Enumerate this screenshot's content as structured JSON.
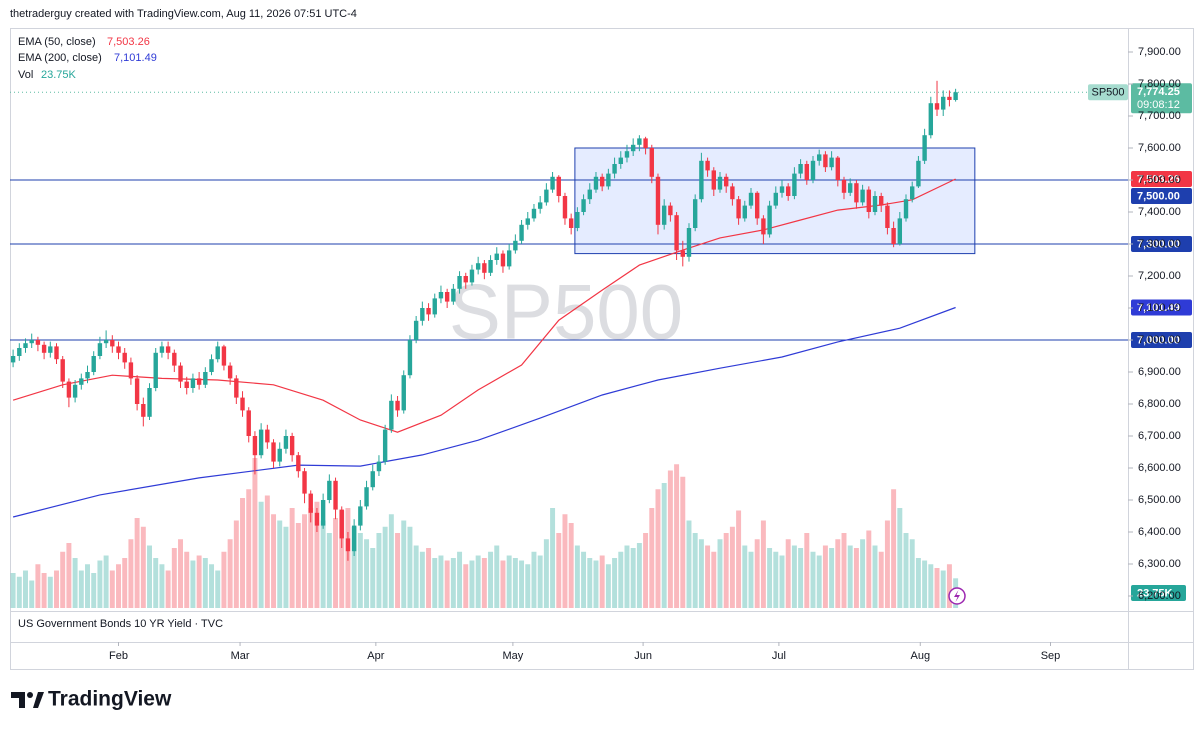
{
  "chart_data": {
    "type": "candlestick",
    "header": "thetraderguy created with TradingView.com, Aug 11, 2026 07:51 UTC-4",
    "watermark": "SP500",
    "xlim": [
      -0.5,
      179.8
    ],
    "xticks": [
      {
        "value": 17,
        "label": "Feb"
      },
      {
        "value": 36.6,
        "label": "Mar"
      },
      {
        "value": 58.5,
        "label": "Apr"
      },
      {
        "value": 80.6,
        "label": "May"
      },
      {
        "value": 101.6,
        "label": "Jun"
      },
      {
        "value": 123.5,
        "label": "Jul"
      },
      {
        "value": 146.3,
        "label": "Aug"
      },
      {
        "value": 167.3,
        "label": "Sep"
      }
    ],
    "ylim": [
      6162.5,
      7975
    ],
    "yticks": [
      {
        "value": 7900,
        "label": "7,900.00"
      },
      {
        "value": 7800,
        "label": "7,800.00"
      },
      {
        "value": 7700,
        "label": "7,700.00"
      },
      {
        "value": 7600,
        "label": "7,600.00"
      },
      {
        "value": 7500,
        "label": "7,500.00"
      },
      {
        "value": 7400,
        "label": "7,400.00"
      },
      {
        "value": 7300,
        "label": "7,300.00"
      },
      {
        "value": 7200,
        "label": "7,200.00"
      },
      {
        "value": 7100,
        "label": "7,100.00"
      },
      {
        "value": 7000,
        "label": "7,000.00"
      },
      {
        "value": 6900,
        "label": "6,900.00"
      },
      {
        "value": 6800,
        "label": "6,800.00"
      },
      {
        "value": 6700,
        "label": "6,700.00"
      },
      {
        "value": 6600,
        "label": "6,600.00"
      },
      {
        "value": 6500,
        "label": "6,500.00"
      },
      {
        "value": 6400,
        "label": "6,400.00"
      },
      {
        "value": 6300,
        "label": "6,300.00"
      },
      {
        "value": 6200,
        "label": "6,200.00"
      }
    ],
    "grid": false,
    "up_color": "#26a69a",
    "down_color": "#f23645",
    "ohlc": [
      [
        6930,
        6970,
        6915,
        6950
      ],
      [
        6950,
        6990,
        6935,
        6975
      ],
      [
        6975,
        7005,
        6960,
        6990
      ],
      [
        6990,
        7020,
        6975,
        7000
      ],
      [
        7000,
        7010,
        6965,
        6985
      ],
      [
        6985,
        6995,
        6940,
        6960
      ],
      [
        6960,
        6995,
        6945,
        6980
      ],
      [
        6980,
        6990,
        6925,
        6940
      ],
      [
        6940,
        6950,
        6850,
        6870
      ],
      [
        6870,
        6880,
        6790,
        6820
      ],
      [
        6820,
        6875,
        6805,
        6860
      ],
      [
        6860,
        6895,
        6845,
        6880
      ],
      [
        6880,
        6920,
        6865,
        6900
      ],
      [
        6900,
        6965,
        6890,
        6950
      ],
      [
        6950,
        7010,
        6940,
        6990
      ],
      [
        6990,
        7030,
        6975,
        7000
      ],
      [
        7000,
        7015,
        6960,
        6980
      ],
      [
        6980,
        6995,
        6940,
        6960
      ],
      [
        6960,
        6975,
        6910,
        6930
      ],
      [
        6930,
        6945,
        6860,
        6880
      ],
      [
        6880,
        6890,
        6780,
        6800
      ],
      [
        6800,
        6820,
        6730,
        6760
      ],
      [
        6760,
        6865,
        6750,
        6850
      ],
      [
        6850,
        6975,
        6840,
        6960
      ],
      [
        6960,
        6995,
        6945,
        6980
      ],
      [
        6980,
        6995,
        6940,
        6960
      ],
      [
        6960,
        6970,
        6900,
        6920
      ],
      [
        6920,
        6930,
        6850,
        6870
      ],
      [
        6870,
        6885,
        6830,
        6850
      ],
      [
        6850,
        6895,
        6835,
        6880
      ],
      [
        6880,
        6900,
        6845,
        6860
      ],
      [
        6860,
        6915,
        6850,
        6900
      ],
      [
        6900,
        6955,
        6890,
        6940
      ],
      [
        6940,
        6995,
        6930,
        6980
      ],
      [
        6980,
        6985,
        6905,
        6920
      ],
      [
        6920,
        6930,
        6860,
        6880
      ],
      [
        6880,
        6890,
        6800,
        6820
      ],
      [
        6820,
        6840,
        6760,
        6780
      ],
      [
        6780,
        6790,
        6680,
        6700
      ],
      [
        6700,
        6715,
        6580,
        6640
      ],
      [
        6640,
        6740,
        6630,
        6720
      ],
      [
        6720,
        6735,
        6660,
        6680
      ],
      [
        6680,
        6690,
        6600,
        6620
      ],
      [
        6620,
        6680,
        6605,
        6660
      ],
      [
        6660,
        6720,
        6645,
        6700
      ],
      [
        6700,
        6710,
        6620,
        6640
      ],
      [
        6640,
        6650,
        6570,
        6590
      ],
      [
        6590,
        6600,
        6490,
        6520
      ],
      [
        6520,
        6530,
        6430,
        6460
      ],
      [
        6460,
        6475,
        6400,
        6420
      ],
      [
        6420,
        6520,
        6410,
        6500
      ],
      [
        6500,
        6580,
        6490,
        6560
      ],
      [
        6560,
        6570,
        6440,
        6470
      ],
      [
        6470,
        6480,
        6350,
        6380
      ],
      [
        6380,
        6400,
        6310,
        6340
      ],
      [
        6340,
        6440,
        6325,
        6420
      ],
      [
        6420,
        6500,
        6405,
        6480
      ],
      [
        6480,
        6560,
        6470,
        6540
      ],
      [
        6540,
        6610,
        6530,
        6590
      ],
      [
        6590,
        6640,
        6575,
        6620
      ],
      [
        6620,
        6735,
        6610,
        6720
      ],
      [
        6720,
        6830,
        6710,
        6810
      ],
      [
        6810,
        6825,
        6760,
        6780
      ],
      [
        6780,
        6905,
        6770,
        6890
      ],
      [
        6890,
        7015,
        6880,
        7000
      ],
      [
        7000,
        7075,
        6990,
        7060
      ],
      [
        7060,
        7120,
        7045,
        7100
      ],
      [
        7100,
        7115,
        7060,
        7080
      ],
      [
        7080,
        7145,
        7070,
        7130
      ],
      [
        7130,
        7170,
        7115,
        7150
      ],
      [
        7150,
        7160,
        7100,
        7120
      ],
      [
        7120,
        7175,
        7110,
        7160
      ],
      [
        7160,
        7215,
        7145,
        7200
      ],
      [
        7200,
        7210,
        7160,
        7180
      ],
      [
        7180,
        7235,
        7170,
        7220
      ],
      [
        7220,
        7260,
        7205,
        7240
      ],
      [
        7240,
        7250,
        7190,
        7210
      ],
      [
        7210,
        7265,
        7200,
        7250
      ],
      [
        7250,
        7290,
        7235,
        7270
      ],
      [
        7270,
        7280,
        7210,
        7230
      ],
      [
        7230,
        7300,
        7220,
        7280
      ],
      [
        7280,
        7330,
        7270,
        7310
      ],
      [
        7310,
        7375,
        7300,
        7360
      ],
      [
        7360,
        7400,
        7345,
        7380
      ],
      [
        7380,
        7425,
        7370,
        7410
      ],
      [
        7410,
        7450,
        7395,
        7430
      ],
      [
        7430,
        7490,
        7420,
        7470
      ],
      [
        7470,
        7525,
        7460,
        7510
      ],
      [
        7510,
        7515,
        7430,
        7450
      ],
      [
        7450,
        7460,
        7360,
        7380
      ],
      [
        7380,
        7395,
        7330,
        7350
      ],
      [
        7350,
        7415,
        7340,
        7400
      ],
      [
        7400,
        7455,
        7390,
        7440
      ],
      [
        7440,
        7490,
        7425,
        7470
      ],
      [
        7470,
        7525,
        7460,
        7510
      ],
      [
        7510,
        7520,
        7465,
        7480
      ],
      [
        7480,
        7535,
        7470,
        7520
      ],
      [
        7520,
        7570,
        7505,
        7550
      ],
      [
        7550,
        7590,
        7535,
        7570
      ],
      [
        7570,
        7610,
        7555,
        7590
      ],
      [
        7590,
        7630,
        7575,
        7610
      ],
      [
        7610,
        7640,
        7590,
        7630
      ],
      [
        7630,
        7635,
        7580,
        7600
      ],
      [
        7600,
        7610,
        7490,
        7510
      ],
      [
        7510,
        7520,
        7330,
        7360
      ],
      [
        7360,
        7440,
        7345,
        7420
      ],
      [
        7420,
        7430,
        7370,
        7390
      ],
      [
        7390,
        7400,
        7250,
        7280
      ],
      [
        7280,
        7310,
        7230,
        7260
      ],
      [
        7260,
        7365,
        7245,
        7350
      ],
      [
        7350,
        7455,
        7340,
        7440
      ],
      [
        7440,
        7585,
        7430,
        7560
      ],
      [
        7560,
        7570,
        7510,
        7530
      ],
      [
        7530,
        7540,
        7450,
        7470
      ],
      [
        7470,
        7525,
        7460,
        7510
      ],
      [
        7510,
        7520,
        7460,
        7480
      ],
      [
        7480,
        7490,
        7420,
        7440
      ],
      [
        7440,
        7450,
        7360,
        7380
      ],
      [
        7380,
        7435,
        7370,
        7420
      ],
      [
        7420,
        7475,
        7410,
        7460
      ],
      [
        7460,
        7465,
        7360,
        7380
      ],
      [
        7380,
        7390,
        7300,
        7330
      ],
      [
        7330,
        7435,
        7320,
        7420
      ],
      [
        7420,
        7480,
        7410,
        7460
      ],
      [
        7460,
        7500,
        7445,
        7480
      ],
      [
        7480,
        7490,
        7435,
        7450
      ],
      [
        7450,
        7540,
        7440,
        7520
      ],
      [
        7520,
        7565,
        7505,
        7550
      ],
      [
        7550,
        7560,
        7485,
        7500
      ],
      [
        7500,
        7575,
        7490,
        7560
      ],
      [
        7560,
        7595,
        7545,
        7580
      ],
      [
        7580,
        7590,
        7525,
        7540
      ],
      [
        7540,
        7590,
        7530,
        7570
      ],
      [
        7570,
        7575,
        7480,
        7500
      ],
      [
        7500,
        7510,
        7440,
        7460
      ],
      [
        7460,
        7505,
        7450,
        7490
      ],
      [
        7490,
        7500,
        7410,
        7430
      ],
      [
        7430,
        7485,
        7420,
        7470
      ],
      [
        7470,
        7480,
        7380,
        7400
      ],
      [
        7400,
        7465,
        7390,
        7450
      ],
      [
        7450,
        7460,
        7400,
        7420
      ],
      [
        7420,
        7430,
        7330,
        7350
      ],
      [
        7350,
        7370,
        7290,
        7300
      ],
      [
        7300,
        7400,
        7295,
        7380
      ],
      [
        7380,
        7455,
        7370,
        7440
      ],
      [
        7440,
        7495,
        7430,
        7480
      ],
      [
        7480,
        7575,
        7475,
        7560
      ],
      [
        7560,
        7660,
        7550,
        7640
      ],
      [
        7640,
        7760,
        7630,
        7740
      ],
      [
        7740,
        7810,
        7700,
        7720
      ],
      [
        7720,
        7780,
        7700,
        7760
      ],
      [
        7760,
        7780,
        7730,
        7750
      ],
      [
        7750,
        7785,
        7745,
        7774.25
      ]
    ],
    "volume": {
      "name": "Vol",
      "value_label": "23.75K",
      "vlim": [
        0,
        160
      ],
      "values": [
        28,
        25,
        30,
        22,
        35,
        28,
        25,
        30,
        45,
        52,
        40,
        30,
        35,
        28,
        38,
        42,
        30,
        35,
        40,
        55,
        72,
        65,
        50,
        40,
        35,
        30,
        48,
        55,
        45,
        38,
        42,
        40,
        35,
        30,
        45,
        55,
        70,
        88,
        95,
        120,
        85,
        90,
        75,
        70,
        65,
        80,
        68,
        75,
        80,
        85,
        70,
        60,
        72,
        78,
        80,
        65,
        60,
        55,
        48,
        60,
        65,
        75,
        60,
        70,
        65,
        50,
        45,
        48,
        40,
        42,
        38,
        40,
        45,
        35,
        38,
        42,
        40,
        45,
        50,
        38,
        42,
        40,
        38,
        35,
        45,
        42,
        55,
        80,
        60,
        75,
        68,
        50,
        45,
        40,
        38,
        42,
        35,
        40,
        45,
        50,
        48,
        52,
        60,
        80,
        95,
        100,
        110,
        115,
        105,
        70,
        60,
        55,
        50,
        45,
        55,
        60,
        65,
        78,
        50,
        45,
        55,
        70,
        48,
        45,
        42,
        55,
        50,
        48,
        60,
        45,
        42,
        50,
        48,
        55,
        60,
        50,
        48,
        55,
        62,
        50,
        45,
        70,
        95,
        80,
        60,
        55,
        40,
        38,
        35,
        32,
        30,
        35,
        23.75
      ]
    },
    "ema": [
      {
        "name": "EMA (50, close)",
        "color": "#f23645",
        "value_label": "7,503.26",
        "x": [
          0,
          8,
          16,
          24,
          33,
          42,
          50,
          56,
          62,
          69,
          75,
          82,
          88,
          95,
          101,
          108,
          114,
          121,
          127,
          133,
          140,
          145,
          152
        ],
        "values": [
          6812,
          6860,
          6890,
          6880,
          6875,
          6860,
          6812,
          6750,
          6712,
          6765,
          6844,
          6922,
          7062,
          7156,
          7234,
          7281,
          7319,
          7344,
          7375,
          7406,
          7422,
          7438,
          7503.26
        ]
      },
      {
        "name": "EMA (200, close)",
        "color": "#2f3bd6",
        "value_label": "7,101.49",
        "x": [
          0,
          14,
          30,
          46,
          56,
          66,
          75,
          85,
          95,
          104,
          114,
          124,
          133,
          143,
          152
        ],
        "values": [
          6447,
          6516,
          6569,
          6609,
          6606,
          6641,
          6687,
          6756,
          6828,
          6875,
          6912,
          6947,
          6994,
          7037,
          7101.49
        ]
      }
    ],
    "hlines": [
      {
        "value": 7500,
        "label": "7,500.00",
        "color": "#1e3fae"
      },
      {
        "value": 7300,
        "label": "7,300.00",
        "color": "#1e3fae"
      },
      {
        "value": 7000,
        "label": "7,000.00",
        "color": "#1e3fae"
      }
    ],
    "box": {
      "x": [
        90.6,
        155.1
      ],
      "y": [
        7270,
        7600
      ],
      "color": "#1e3fae"
    },
    "last": {
      "symbol": "SP500",
      "value": 7774.25,
      "label": "7,774.25",
      "countdown": "09:08:12",
      "color": "#5cbba2"
    },
    "lower_pane": "US Government Bonds 10 YR Yield · TVC",
    "brand": "TradingView"
  }
}
